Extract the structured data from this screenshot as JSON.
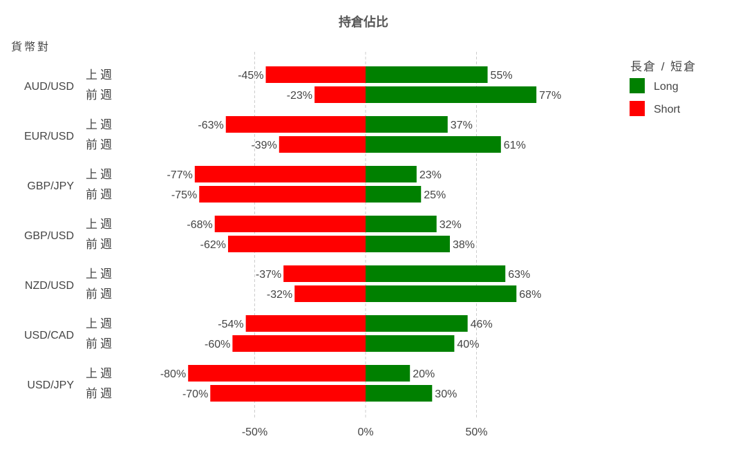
{
  "chart_data": {
    "type": "bar",
    "orientation": "horizontal",
    "stacked": "diverging",
    "title": "持倉佔比",
    "ylabel": "貨幣對",
    "categories": [
      "AUD/USD",
      "EUR/USD",
      "GBP/JPY",
      "GBP/USD",
      "NZD/USD",
      "USD/CAD",
      "USD/JPY"
    ],
    "subcategories": [
      "上週",
      "前週"
    ],
    "xlim": [
      -100,
      100
    ],
    "xticks": [
      -50,
      0,
      50
    ],
    "xtick_labels": [
      "-50%",
      "0%",
      "50%"
    ],
    "grid": "vertical dashed",
    "legend": {
      "title": "長倉 / 短倉",
      "placement": "top-right"
    },
    "series": [
      {
        "name": "Long",
        "color": "#008000",
        "values": [
          [
            55,
            77
          ],
          [
            37,
            61
          ],
          [
            23,
            25
          ],
          [
            32,
            38
          ],
          [
            63,
            68
          ],
          [
            46,
            40
          ],
          [
            20,
            30
          ]
        ],
        "labels": [
          [
            "55%",
            "77%"
          ],
          [
            "37%",
            "61%"
          ],
          [
            "23%",
            "25%"
          ],
          [
            "32%",
            "38%"
          ],
          [
            "63%",
            "68%"
          ],
          [
            "46%",
            "40%"
          ],
          [
            "20%",
            "30%"
          ]
        ]
      },
      {
        "name": "Short",
        "color": "#ff0000",
        "values": [
          [
            -45,
            -23
          ],
          [
            -63,
            -39
          ],
          [
            -77,
            -75
          ],
          [
            -68,
            -62
          ],
          [
            -37,
            -32
          ],
          [
            -54,
            -60
          ],
          [
            -80,
            -70
          ]
        ],
        "labels": [
          [
            "-45%",
            "-23%"
          ],
          [
            "-63%",
            "-39%"
          ],
          [
            "-77%",
            "-75%"
          ],
          [
            "-68%",
            "-62%"
          ],
          [
            "-37%",
            "-32%"
          ],
          [
            "-54%",
            "-60%"
          ],
          [
            "-80%",
            "-70%"
          ]
        ]
      }
    ]
  }
}
